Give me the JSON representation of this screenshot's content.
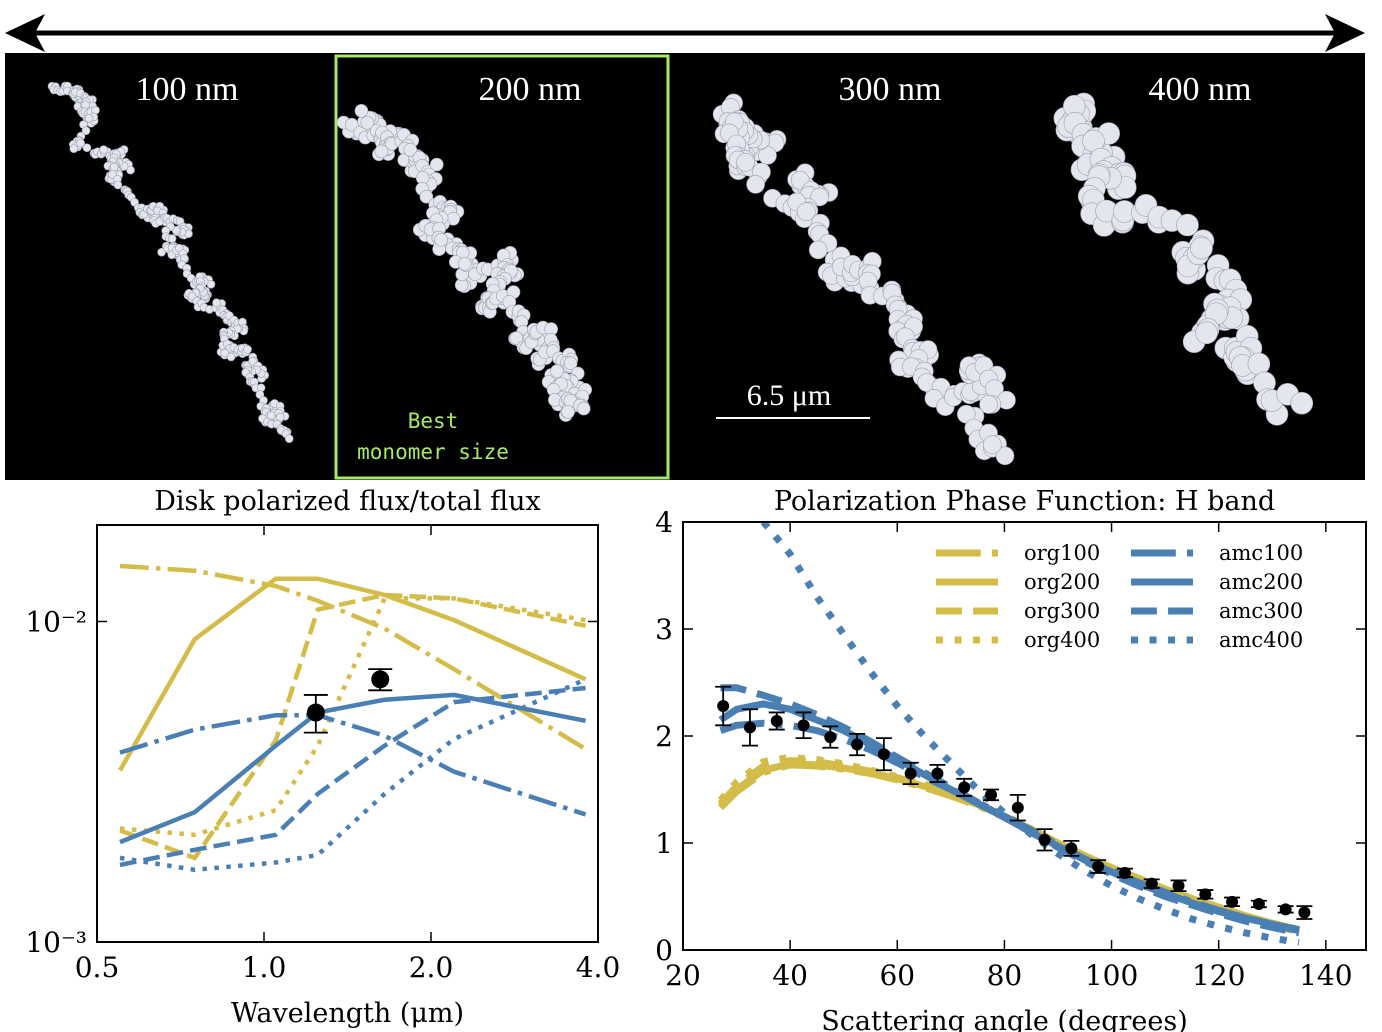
{
  "panels": [
    "100 nm",
    "200 nm",
    "300 nm",
    "400 nm"
  ],
  "best_label": [
    "Best",
    "monomer size"
  ],
  "scale_bar": "6.5 μm",
  "chart_data": [
    {
      "type": "line",
      "title": "Disk polarized flux/total flux",
      "x_label": "Wavelength (μm)",
      "xlog": true,
      "ylog": true,
      "xlim": [
        0.5,
        4.0
      ],
      "ylim": [
        0.001,
        0.02
      ],
      "xticks": [
        0.5,
        {
          "value": 1,
          "label": "1.0"
        },
        {
          "value": 2,
          "label": "2.0"
        },
        {
          "value": 4,
          "label": "4.0"
        }
      ],
      "yticks": [
        {
          "value": 0.001,
          "label": "10⁻³"
        },
        {
          "value": 0.01,
          "label": "10⁻²"
        }
      ],
      "x": [
        0.55,
        0.75,
        1.05,
        1.25,
        1.65,
        2.2,
        3.8
      ],
      "series": [
        {
          "name": "org100",
          "color": "#d4bc48",
          "style": "dashdot",
          "values": [
            0.0149,
            0.0144,
            0.0129,
            0.0116,
            0.0095,
            0.0071,
            0.004
          ]
        },
        {
          "name": "org200",
          "color": "#d4bc48",
          "style": "solid",
          "values": [
            0.00343,
            0.0088,
            0.0136,
            0.0136,
            0.0121,
            0.0101,
            0.0066
          ]
        },
        {
          "name": "org300",
          "color": "#d4bc48",
          "style": "dashed",
          "values": [
            0.00223,
            0.00183,
            0.00426,
            0.0109,
            0.0121,
            0.0118,
            0.0097
          ]
        },
        {
          "name": "org400",
          "color": "#d4bc48",
          "style": "dotted",
          "values": [
            0.00226,
            0.00216,
            0.00258,
            0.0041,
            0.0118,
            0.0118,
            0.0101
          ]
        },
        {
          "name": "amc100",
          "color": "#4a7fb3",
          "style": "dashdot",
          "values": [
            0.0039,
            0.0046,
            0.0051,
            0.0051,
            0.0044,
            0.0034,
            0.0025
          ]
        },
        {
          "name": "amc200",
          "color": "#4a7fb3",
          "style": "solid",
          "values": [
            0.00205,
            0.00254,
            0.0041,
            0.0052,
            0.0057,
            0.0059,
            0.0049
          ]
        },
        {
          "name": "amc300",
          "color": "#4a7fb3",
          "style": "dashed",
          "values": [
            0.00174,
            0.00194,
            0.00216,
            0.0029,
            0.0041,
            0.0056,
            0.0062
          ]
        },
        {
          "name": "amc400",
          "color": "#4a7fb3",
          "style": "dotted",
          "values": [
            0.00183,
            0.00168,
            0.00177,
            0.00187,
            0.0029,
            0.0043,
            0.0066
          ]
        }
      ],
      "points": {
        "color": "#000000",
        "x": [
          1.24,
          1.62
        ],
        "values": [
          0.0052,
          0.0066
        ],
        "errors": [
          0.0007,
          0.0005
        ]
      }
    },
    {
      "type": "line",
      "title": "Polarization Phase Function: H band",
      "x_label": "Scattering angle (degrees)",
      "xlog": false,
      "ylog": false,
      "xlim": [
        20,
        147.5
      ],
      "ylim": [
        0,
        4
      ],
      "xticks": [
        20,
        40,
        60,
        80,
        100,
        120,
        140
      ],
      "yticks": [
        0,
        1,
        2,
        3,
        4
      ],
      "legend": "upper right",
      "x": [
        27,
        30,
        35,
        40,
        45,
        50,
        55,
        60,
        65,
        70,
        75,
        80,
        85,
        90,
        95,
        100,
        105,
        110,
        115,
        120,
        125,
        130,
        135
      ],
      "series": [
        {
          "name": "org100",
          "color": "#d4bc48",
          "style": "dashdot",
          "values": [
            1.33,
            1.48,
            1.66,
            1.73,
            1.72,
            1.69,
            1.65,
            1.59,
            1.52,
            1.44,
            1.35,
            1.24,
            1.12,
            1.0,
            0.88,
            0.77,
            0.67,
            0.57,
            0.48,
            0.4,
            0.32,
            0.25,
            0.19
          ]
        },
        {
          "name": "org200",
          "color": "#d4bc48",
          "style": "solid",
          "values": [
            1.35,
            1.5,
            1.68,
            1.74,
            1.73,
            1.7,
            1.66,
            1.6,
            1.53,
            1.45,
            1.36,
            1.25,
            1.13,
            1.0,
            0.88,
            0.77,
            0.67,
            0.57,
            0.48,
            0.4,
            0.32,
            0.25,
            0.19
          ]
        },
        {
          "name": "org300",
          "color": "#d4bc48",
          "style": "dashed",
          "values": [
            1.37,
            1.53,
            1.72,
            1.77,
            1.76,
            1.72,
            1.67,
            1.61,
            1.54,
            1.46,
            1.36,
            1.25,
            1.13,
            1.0,
            0.88,
            0.77,
            0.66,
            0.56,
            0.47,
            0.39,
            0.31,
            0.24,
            0.18
          ]
        },
        {
          "name": "org400",
          "color": "#d4bc48",
          "style": "dotted",
          "values": [
            1.4,
            1.57,
            1.76,
            1.8,
            1.78,
            1.74,
            1.68,
            1.62,
            1.55,
            1.47,
            1.37,
            1.26,
            1.13,
            1.0,
            0.88,
            0.76,
            0.65,
            0.55,
            0.46,
            0.38,
            0.3,
            0.23,
            0.17
          ]
        },
        {
          "name": "amc100",
          "color": "#4a7fb3",
          "style": "dashdot",
          "values": [
            2.05,
            2.1,
            2.12,
            2.1,
            2.05,
            1.97,
            1.87,
            1.75,
            1.62,
            1.5,
            1.38,
            1.25,
            1.12,
            0.98,
            0.85,
            0.74,
            0.63,
            0.54,
            0.45,
            0.37,
            0.3,
            0.24,
            0.18
          ]
        },
        {
          "name": "amc200",
          "color": "#4a7fb3",
          "style": "solid",
          "values": [
            2.15,
            2.25,
            2.3,
            2.25,
            2.15,
            2.05,
            1.92,
            1.78,
            1.64,
            1.5,
            1.37,
            1.24,
            1.1,
            0.97,
            0.84,
            0.73,
            0.62,
            0.53,
            0.44,
            0.36,
            0.3,
            0.24,
            0.19
          ]
        },
        {
          "name": "amc300",
          "color": "#4a7fb3",
          "style": "dashed",
          "values": [
            2.45,
            2.45,
            2.38,
            2.3,
            2.2,
            2.08,
            1.95,
            1.8,
            1.66,
            1.52,
            1.38,
            1.24,
            1.1,
            0.96,
            0.83,
            0.71,
            0.6,
            0.5,
            0.42,
            0.34,
            0.27,
            0.21,
            0.16
          ]
        },
        {
          "name": "amc400",
          "color": "#4a7fb3",
          "style": "dotted",
          "values": [
            null,
            null,
            4.0,
            3.7,
            3.3,
            2.95,
            2.6,
            2.28,
            2.0,
            1.75,
            1.5,
            1.28,
            1.08,
            0.9,
            0.74,
            0.6,
            0.48,
            0.38,
            0.29,
            0.22,
            0.16,
            0.11,
            0.07
          ]
        }
      ],
      "points": {
        "color": "#000000",
        "x": [
          27.5,
          32.5,
          37.5,
          42.5,
          47.5,
          52.5,
          57.5,
          62.5,
          67.5,
          72.5,
          77.5,
          82.5,
          87.5,
          92.5,
          97.5,
          102.5,
          107.5,
          112.5,
          117.5,
          122.5,
          127.5,
          132.5,
          136
        ],
        "values": [
          2.28,
          2.08,
          2.14,
          2.1,
          1.99,
          1.92,
          1.83,
          1.65,
          1.65,
          1.52,
          1.45,
          1.33,
          1.03,
          0.95,
          0.78,
          0.72,
          0.62,
          0.6,
          0.52,
          0.45,
          0.43,
          0.38,
          0.35
        ],
        "errors": [
          0.18,
          0.17,
          0.08,
          0.12,
          0.1,
          0.1,
          0.15,
          0.1,
          0.08,
          0.08,
          0.05,
          0.12,
          0.1,
          0.07,
          0.06,
          0.04,
          0.04,
          0.05,
          0.04,
          0.04,
          0.03,
          0.03,
          0.06
        ]
      }
    }
  ]
}
